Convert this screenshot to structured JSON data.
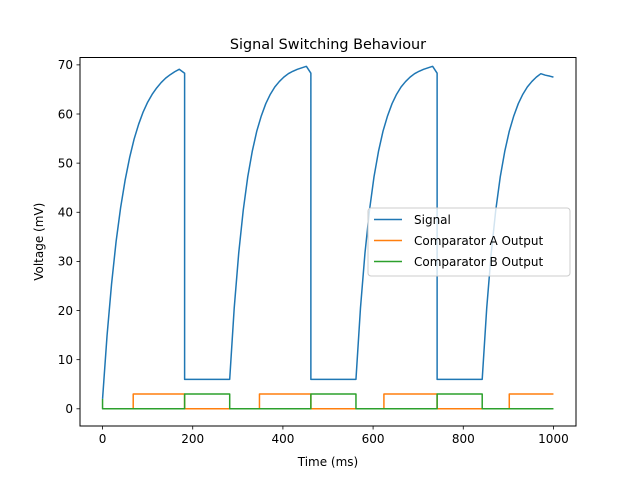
{
  "chart_data": {
    "type": "line",
    "title": "Signal Switching Behaviour",
    "xlabel": "Time (ms)",
    "ylabel": "Voltage (mV)",
    "xlim": [
      -50,
      1050
    ],
    "ylim": [
      -3.5,
      71.5
    ],
    "xticks": [
      0,
      200,
      400,
      600,
      800,
      1000
    ],
    "yticks": [
      0,
      10,
      20,
      30,
      40,
      50,
      60,
      70
    ],
    "grid": false,
    "legend": "center-right",
    "series": [
      {
        "name": "Signal",
        "color": "#1f77b4",
        "x": [
          0,
          10,
          20,
          30,
          40,
          50,
          60,
          70,
          80,
          90,
          100,
          110,
          120,
          130,
          140,
          150,
          160,
          170,
          182,
          182,
          280,
          282,
          292,
          302,
          312,
          322,
          332,
          342,
          352,
          362,
          372,
          382,
          392,
          402,
          412,
          422,
          432,
          442,
          452,
          462,
          462,
          560,
          562,
          572,
          582,
          592,
          602,
          612,
          622,
          632,
          642,
          652,
          662,
          672,
          682,
          692,
          702,
          712,
          722,
          732,
          742,
          742,
          840,
          842,
          852,
          862,
          872,
          882,
          892,
          902,
          912,
          922,
          932,
          942,
          952,
          962,
          972,
          982,
          992,
          1000
        ],
        "y": [
          2,
          14.9,
          25.4,
          34.0,
          40.9,
          46.5,
          51.1,
          54.9,
          57.9,
          60.4,
          62.4,
          64.0,
          65.3,
          66.4,
          67.3,
          68.0,
          68.6,
          69.1,
          68.3,
          6.0,
          6.0,
          6.0,
          20.5,
          31.7,
          40.4,
          47.2,
          52.4,
          56.5,
          59.6,
          62.1,
          64.0,
          65.5,
          66.6,
          67.5,
          68.2,
          68.7,
          69.1,
          69.4,
          69.7,
          68.3,
          6.0,
          6.0,
          6.0,
          20.5,
          31.7,
          40.4,
          47.2,
          52.4,
          56.5,
          59.6,
          62.1,
          64.0,
          65.5,
          66.6,
          67.5,
          68.2,
          68.7,
          69.1,
          69.4,
          69.7,
          68.3,
          6.0,
          6.0,
          6.0,
          20.5,
          31.7,
          40.4,
          47.2,
          52.4,
          56.5,
          59.6,
          62.1,
          64.0,
          65.5,
          66.6,
          67.5,
          68.2,
          67.9,
          67.7,
          67.5
        ]
      },
      {
        "name": "Comparator A Output",
        "color": "#ff7f0e",
        "x": [
          0,
          68,
          68,
          182,
          182,
          348,
          348,
          462,
          462,
          624,
          624,
          742,
          742,
          902,
          902,
          1000
        ],
        "y": [
          0,
          0,
          3,
          3,
          0,
          0,
          3,
          3,
          0,
          0,
          3,
          3,
          0,
          0,
          3,
          3
        ]
      },
      {
        "name": "Comparator B Output",
        "color": "#2ca02c",
        "x": [
          0,
          0,
          0,
          182,
          182,
          282,
          282,
          462,
          462,
          562,
          562,
          742,
          742,
          842,
          842,
          1000
        ],
        "y": [
          2,
          0,
          0,
          0,
          3,
          3,
          0,
          0,
          3,
          3,
          0,
          0,
          3,
          3,
          0,
          0
        ]
      }
    ]
  }
}
